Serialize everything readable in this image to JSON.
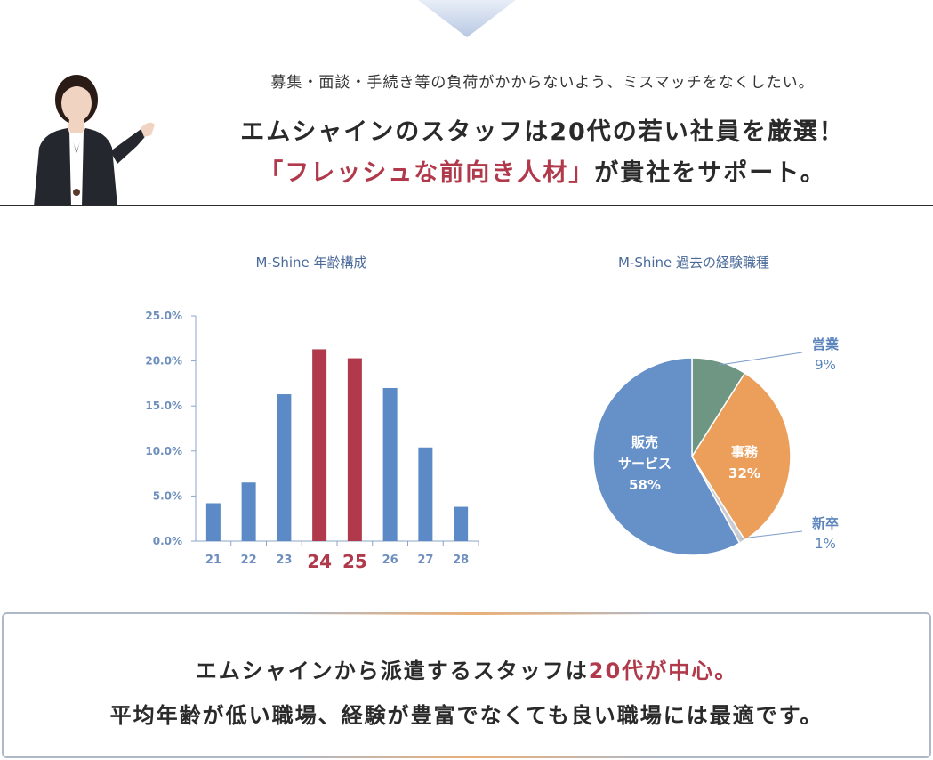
{
  "header": {
    "subcopy": "募集・面談・手続き等の負荷がかからないよう、ミスマッチをなくしたい。",
    "headline_line1": "エムシャインのスタッフは20代の若い社員を厳選！",
    "headline_line2_accent": "「フレッシュな前向き人材」",
    "headline_line2_rest": "が貴社をサポート。"
  },
  "chart_data": [
    {
      "type": "bar",
      "title": "M-Shine 年齢構成",
      "categories": [
        "21",
        "22",
        "23",
        "24",
        "25",
        "26",
        "27",
        "28"
      ],
      "values": [
        4.2,
        6.5,
        16.3,
        21.3,
        20.3,
        17.0,
        10.4,
        3.8
      ],
      "highlight": [
        "24",
        "25"
      ],
      "yticks": [
        "0.0%",
        "5.0%",
        "10.0%",
        "15.0%",
        "20.0%",
        "25.0%"
      ],
      "ylim": [
        0,
        25
      ],
      "colors": {
        "base": "#5b8ac6",
        "highlight": "#b03a4b"
      }
    },
    {
      "type": "pie",
      "title": "M-Shine 過去の経験職種",
      "slices": [
        {
          "label": "販売\nサービス",
          "label_line1": "販売",
          "label_line2": "サービス",
          "value_label": "58%",
          "value": 58,
          "color": "#6590c8"
        },
        {
          "label": "営業",
          "value_label": "9%",
          "value": 9,
          "color": "#6f9683"
        },
        {
          "label": "事務",
          "value_label": "32%",
          "value": 32,
          "color": "#ec9e5b"
        },
        {
          "label": "新卒",
          "value_label": "1%",
          "value": 1,
          "color": "#c9ccd2"
        }
      ]
    }
  ],
  "summary": {
    "line1_text": "エムシャインから派遣するスタッフは",
    "line1_accent": "20代が中心。",
    "line2": "平均年齢が低い職場、経験が豊富でなくても良い職場には最適です。"
  }
}
